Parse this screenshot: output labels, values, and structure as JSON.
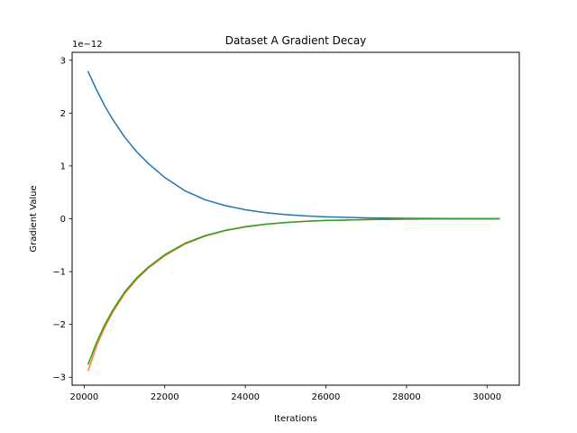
{
  "chart_data": {
    "type": "line",
    "title": "Dataset A Gradient Decay",
    "xlabel": "Iterations",
    "ylabel": "Gradient Value",
    "y_offset_label": "1e−12",
    "xlim": [
      19700,
      30800
    ],
    "ylim": [
      -3.15,
      3.15
    ],
    "x_ticks": [
      20000,
      22000,
      24000,
      26000,
      28000,
      30000
    ],
    "x_tick_labels": [
      "20000",
      "22000",
      "24000",
      "26000",
      "28000",
      "30000"
    ],
    "y_ticks": [
      -3,
      -2,
      -1,
      0,
      1,
      2,
      3
    ],
    "y_tick_labels": [
      "−3",
      "−2",
      "−1",
      "0",
      "1",
      "2",
      "3"
    ],
    "grid": false,
    "series": [
      {
        "color": "#1f77b4",
        "x": [
          20100,
          20300,
          20500,
          20700,
          21000,
          21300,
          21600,
          22000,
          22500,
          23000,
          23500,
          24000,
          24500,
          25000,
          25500,
          26000,
          27000,
          28000,
          29000,
          30000,
          30300
        ],
        "values": [
          2.78,
          2.45,
          2.15,
          1.89,
          1.55,
          1.27,
          1.04,
          0.78,
          0.53,
          0.36,
          0.25,
          0.17,
          0.115,
          0.078,
          0.053,
          0.036,
          0.017,
          0.008,
          0.004,
          0.002,
          0.001
        ]
      },
      {
        "color": "#ff7f0e",
        "x": [
          20100,
          20300,
          20500,
          20700,
          21000,
          21300,
          21600,
          22000,
          22500,
          23000,
          23500,
          24000,
          24500,
          25000,
          25500,
          26000,
          27000,
          28000,
          29000,
          30000,
          30300
        ],
        "values": [
          -2.87,
          -2.42,
          -2.07,
          -1.78,
          -1.42,
          -1.15,
          -0.93,
          -0.7,
          -0.48,
          -0.33,
          -0.225,
          -0.155,
          -0.105,
          -0.072,
          -0.049,
          -0.033,
          -0.016,
          -0.007,
          -0.003,
          -0.002,
          -0.001
        ]
      },
      {
        "color": "#2ca02c",
        "x": [
          20100,
          20300,
          20500,
          20700,
          21000,
          21300,
          21600,
          22000,
          22500,
          23000,
          23500,
          24000,
          24500,
          25000,
          25500,
          26000,
          27000,
          28000,
          29000,
          30000,
          30300
        ],
        "values": [
          -2.75,
          -2.35,
          -2.02,
          -1.74,
          -1.39,
          -1.12,
          -0.91,
          -0.68,
          -0.465,
          -0.32,
          -0.22,
          -0.15,
          -0.103,
          -0.07,
          -0.048,
          -0.033,
          -0.015,
          -0.007,
          -0.003,
          -0.002,
          -0.001
        ]
      }
    ]
  }
}
